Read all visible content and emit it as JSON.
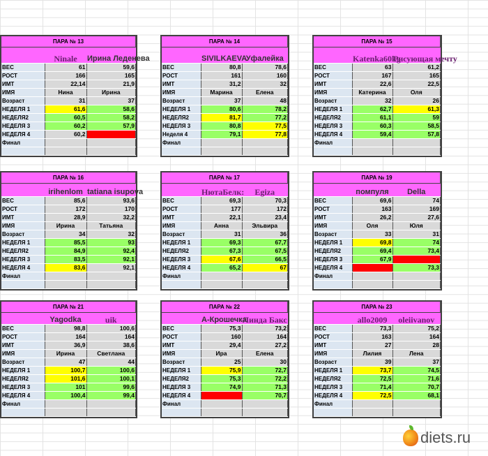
{
  "blocks": [
    {
      "title": "ПАРА № 13",
      "nick1": "Ninale",
      "nick2": "Ирина Леденева",
      "rows": [
        [
          "ВЕС",
          "61",
          "59,6",
          "",
          ""
        ],
        [
          "РОСТ",
          "166",
          "165",
          "",
          ""
        ],
        [
          "ИМТ",
          "22,14",
          "21,9",
          "",
          ""
        ],
        [
          "ИМЯ",
          "Нина",
          "Ирина",
          "",
          ""
        ],
        [
          "Возраст",
          "31",
          "37",
          "",
          ""
        ],
        [
          "НЕДЕЛЯ 1",
          "61,6",
          "58,6",
          "y",
          "g"
        ],
        [
          "НЕДЕЛЯ2",
          "60,5",
          "58,2",
          "g",
          "g"
        ],
        [
          "НЕДЕЛЯ 3",
          "60,2",
          "57,9",
          "g",
          "g"
        ],
        [
          "НЕДЕЛЯ 4",
          "60,2",
          "",
          "",
          "r"
        ],
        [
          "Финал",
          "",
          "",
          "",
          ""
        ],
        [
          "",
          "",
          "",
          "",
          ""
        ]
      ]
    },
    {
      "title": "ПАРА № 14",
      "nick1": "SIVILKAEVA",
      "nick2": "Уфалейка",
      "rows": [
        [
          "ВЕС",
          "80,8",
          "78,6",
          "",
          ""
        ],
        [
          "РОСТ",
          "161",
          "160",
          "",
          ""
        ],
        [
          "ИМТ",
          "31,2",
          "32",
          "",
          ""
        ],
        [
          "ИМЯ",
          "Марина",
          "Елена",
          "",
          ""
        ],
        [
          "Возраст",
          "37",
          "48",
          "",
          ""
        ],
        [
          "НЕДЕЛЯ 1",
          "80,6",
          "78,2",
          "g",
          "g"
        ],
        [
          "НЕДЕЛЯ2",
          "81,7",
          "77,2",
          "y",
          "g"
        ],
        [
          "НЕДЕЛЯ 3",
          "80,8",
          "77,5",
          "g",
          "y"
        ],
        [
          "Неделя 4",
          "79,1",
          "77,8",
          "g",
          "y"
        ],
        [
          "Финал",
          "",
          "",
          "",
          ""
        ],
        [
          "",
          "",
          "",
          "",
          ""
        ]
      ]
    },
    {
      "title": "ПАРА № 15",
      "nick1": "Katenka60kg",
      "nick2": "Рисующая мечту",
      "rows": [
        [
          "ВЕС",
          "63",
          "61,2",
          "",
          ""
        ],
        [
          "РОСТ",
          "167",
          "165",
          "",
          ""
        ],
        [
          "ИМТ",
          "22,6",
          "22,5",
          "",
          ""
        ],
        [
          "ИМЯ",
          "Катерина",
          "Оля",
          "",
          ""
        ],
        [
          "Возраст",
          "32",
          "26",
          "",
          ""
        ],
        [
          "НЕДЕЛЯ 1",
          "62,7",
          "61,3",
          "g",
          "y"
        ],
        [
          "НЕДЕЛЯ2",
          "61,1",
          "59",
          "g",
          "g"
        ],
        [
          "НЕДЕЛЯ 3",
          "60,3",
          "58,5",
          "g",
          "g"
        ],
        [
          "НЕДЕЛЯ 4",
          "59,4",
          "57,8",
          "g",
          "g"
        ],
        [
          "Финал",
          "",
          "",
          "",
          ""
        ],
        [
          "",
          "",
          "",
          "",
          ""
        ]
      ]
    },
    {
      "title": "ПАРА № 16",
      "nick1": "irihenlom",
      "nick2": "tatiana isupova",
      "rows": [
        [
          "ВЕС",
          "85,6",
          "93,6",
          "",
          ""
        ],
        [
          "РОСТ",
          "172",
          "170",
          "",
          ""
        ],
        [
          "ИМТ",
          "28,9",
          "32,2",
          "",
          ""
        ],
        [
          "ИМЯ",
          "Ирина",
          "Татьяна",
          "",
          ""
        ],
        [
          "Возраст",
          "34",
          "32",
          "",
          ""
        ],
        [
          "НЕДЕЛЯ 1",
          "85,5",
          "93",
          "g",
          "g"
        ],
        [
          "НЕДЕЛЯ2",
          "84,9",
          "92,4",
          "g",
          "g"
        ],
        [
          "НЕДЕЛЯ 3",
          "83,5",
          "92,1",
          "g",
          "g"
        ],
        [
          "НЕДЕЛЯ 4",
          "83,6",
          "92,1",
          "y",
          ""
        ],
        [
          "Финал",
          "",
          "",
          "",
          ""
        ],
        [
          "",
          "",
          "",
          "",
          ""
        ]
      ]
    },
    {
      "title": "ПАРА № 17",
      "nick1": "НютаБелк:",
      "nick2": "Egiza",
      "rows": [
        [
          "ВЕС",
          "69,3",
          "70,3",
          "",
          ""
        ],
        [
          "РОСТ",
          "177",
          "172",
          "",
          ""
        ],
        [
          "ИМТ",
          "22,1",
          "23,4",
          "",
          ""
        ],
        [
          "ИМЯ",
          "Анна",
          "Эльвира",
          "",
          ""
        ],
        [
          "Возраст",
          "31",
          "36",
          "",
          ""
        ],
        [
          "НЕДЕЛЯ 1",
          "69,3",
          "67,7",
          "g",
          "g"
        ],
        [
          "НЕДЕЛЯ2",
          "67,3",
          "67,5",
          "g",
          "g"
        ],
        [
          "НЕДЕЛЯ 3",
          "67,6",
          "66,5",
          "y",
          "g"
        ],
        [
          "НЕДЕЛЯ 4",
          "65,2",
          "67",
          "g",
          "y"
        ],
        [
          "Финал",
          "",
          "",
          "",
          ""
        ],
        [
          "",
          "",
          "",
          "",
          ""
        ]
      ]
    },
    {
      "title": "ПАРА № 19",
      "nick1": "помпуля",
      "nick2": "Della",
      "rows": [
        [
          "ВЕС",
          "69,6",
          "74",
          "",
          ""
        ],
        [
          "РОСТ",
          "163",
          "169",
          "",
          ""
        ],
        [
          "ИМТ",
          "26,2",
          "27,6",
          "",
          ""
        ],
        [
          "ИМЯ",
          "Оля",
          "Юля",
          "",
          ""
        ],
        [
          "Возраст",
          "33",
          "31",
          "",
          ""
        ],
        [
          "НЕДЕЛЯ 1",
          "69,8",
          "74",
          "y",
          "g"
        ],
        [
          "НЕДЕЛЯ2",
          "69,4",
          "73,4",
          "g",
          "g"
        ],
        [
          "НЕДЕЛЯ 3",
          "67,9",
          "",
          "g",
          "r"
        ],
        [
          "НЕДЕЛЯ 4",
          "",
          "73,3",
          "r",
          "g"
        ],
        [
          "Финал",
          "",
          "",
          "",
          ""
        ],
        [
          "",
          "",
          "",
          "",
          ""
        ]
      ]
    },
    {
      "title": "ПАРА № 21",
      "nick1": "Yagodka",
      "nick2": "uik",
      "rows": [
        [
          "ВЕС",
          "98,8",
          "100,6",
          "",
          ""
        ],
        [
          "РОСТ",
          "164",
          "164",
          "",
          ""
        ],
        [
          "ИМТ",
          "36,9",
          "38,6",
          "",
          ""
        ],
        [
          "ИМЯ",
          "Ирина",
          "Светлана",
          "",
          ""
        ],
        [
          "Возраст",
          "47",
          "44",
          "",
          ""
        ],
        [
          "НЕДЕЛЯ 1",
          "100,7",
          "100,6",
          "y",
          "g"
        ],
        [
          "НЕДЕЛЯ2",
          "101,6",
          "100,1",
          "y",
          "g"
        ],
        [
          "НЕДЕЛЯ 3",
          "101",
          "99,6",
          "g",
          "g"
        ],
        [
          "НЕДЕЛЯ 4",
          "100,4",
          "99,4",
          "g",
          "g"
        ],
        [
          "Финал",
          "",
          "",
          "",
          ""
        ],
        [
          "",
          "",
          "",
          "",
          ""
        ]
      ]
    },
    {
      "title": "ПАРА № 22",
      "nick1": "А-Крошечка",
      "nick2": "Линда Бакс",
      "rows": [
        [
          "ВЕС",
          "75,3",
          "73,2",
          "",
          ""
        ],
        [
          "РОСТ",
          "160",
          "164",
          "",
          ""
        ],
        [
          "ИМТ",
          "29,4",
          "27,2",
          "",
          ""
        ],
        [
          "ИМЯ",
          "Ира",
          "Елена",
          "",
          ""
        ],
        [
          "Возраст",
          "25",
          "30",
          "",
          ""
        ],
        [
          "НЕДЕЛЯ 1",
          "75,9",
          "72,7",
          "y",
          "g"
        ],
        [
          "НЕДЕЛЯ2",
          "75,3",
          "72,2",
          "g",
          "g"
        ],
        [
          "НЕДЕЛЯ 3",
          "74,9",
          "71,3",
          "g",
          "g"
        ],
        [
          "НЕДЕЛЯ 4",
          "",
          "70,7",
          "r",
          "g"
        ],
        [
          "Финал",
          "",
          "",
          "",
          ""
        ],
        [
          "",
          "",
          "",
          "",
          ""
        ]
      ]
    },
    {
      "title": "ПАРА № 23",
      "nick1": "allo2009",
      "nick2": "oleiivanov",
      "rows": [
        [
          "ВЕС",
          "73,3",
          "75,2",
          "",
          ""
        ],
        [
          "РОСТ",
          "163",
          "164",
          "",
          ""
        ],
        [
          "ИМТ",
          "27",
          "28",
          "",
          ""
        ],
        [
          "ИМЯ",
          "Лилия",
          "Лена",
          "",
          ""
        ],
        [
          "Возраст",
          "39",
          "37",
          "",
          ""
        ],
        [
          "НЕДЕЛЯ 1",
          "73,7",
          "74,5",
          "y",
          "g"
        ],
        [
          "НЕДЕЛЯ2",
          "72,5",
          "71,6",
          "g",
          "g"
        ],
        [
          "НЕДЕЛЯ 3",
          "71,4",
          "70,7",
          "g",
          "g"
        ],
        [
          "НЕДЕЛЯ 4",
          "72,5",
          "68,1",
          "y",
          "g"
        ],
        [
          "Финал",
          "",
          "",
          "",
          ""
        ],
        [
          "",
          "",
          "",
          "",
          ""
        ]
      ]
    }
  ],
  "logo": {
    "text": "diets.ru",
    "icon": "apple-icon"
  }
}
